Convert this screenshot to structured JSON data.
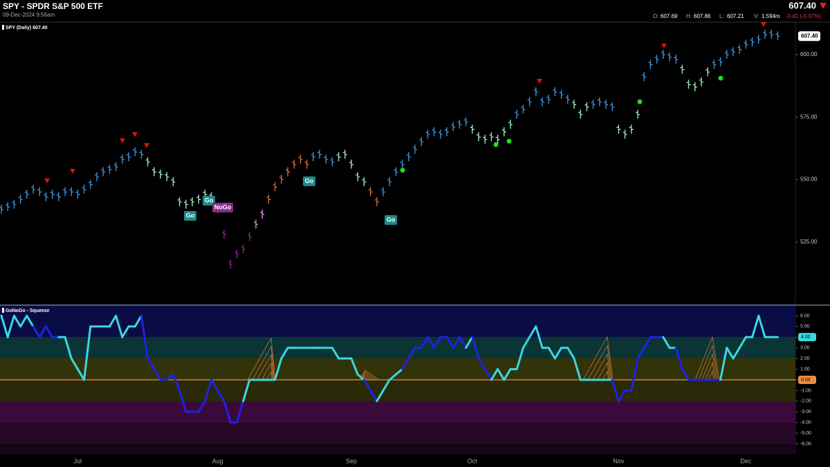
{
  "header": {
    "title": "SPY - SPDR S&P 500 ETF",
    "timestamp": "09-Dec-2024 9:56am",
    "last": "607.40",
    "ohlc": [
      {
        "label": "O:",
        "value": "607.69"
      },
      {
        "label": "H:",
        "value": "607.86"
      },
      {
        "label": "L:",
        "value": "607.21"
      },
      {
        "label": "V:",
        "value": "1.594m"
      }
    ],
    "change": "-0.41 (-0.07%)"
  },
  "chart_data": [
    {
      "type": "ohlc",
      "legend": "SPY (Daily) 607.40",
      "values": [
        538,
        539,
        540,
        542,
        544,
        546,
        545,
        543,
        544,
        543,
        545,
        545,
        544,
        546,
        548,
        551,
        553,
        554,
        555,
        558,
        559,
        561,
        560,
        557,
        553,
        552,
        551,
        549,
        541,
        540,
        541,
        542,
        544,
        543,
        538,
        528,
        516,
        520,
        522,
        527,
        532,
        536,
        542,
        547,
        550,
        553,
        556,
        558,
        556,
        559,
        560,
        558,
        557,
        559,
        560,
        556,
        551,
        549,
        545,
        541,
        545,
        549,
        553,
        556,
        559,
        562,
        565,
        568,
        569,
        568,
        569,
        571,
        572,
        573,
        570,
        567,
        566,
        567,
        566,
        569,
        572,
        576,
        578,
        581,
        585,
        581,
        582,
        585,
        584,
        582,
        580,
        576,
        579,
        580,
        581,
        580,
        579,
        570,
        568,
        570,
        576,
        591,
        596,
        598,
        600,
        599,
        598,
        594,
        588,
        587,
        589,
        593,
        596,
        597,
        600,
        601,
        602,
        604,
        605,
        606,
        608,
        608,
        607.4
      ],
      "colors": [
        "#3b8fd9",
        "#3b8fd9",
        "#3b8fd9",
        "#3b8fd9",
        "#3b8fd9",
        "#3b8fd9",
        "#3b8fd9",
        "#3b8fd9",
        "#3b8fd9",
        "#3b8fd9",
        "#3b8fd9",
        "#3b8fd9",
        "#3b8fd9",
        "#3b8fd9",
        "#3b8fd9",
        "#3b8fd9",
        "#3b8fd9",
        "#3b8fd9",
        "#3b8fd9",
        "#3b8fd9",
        "#3b8fd9",
        "#3b8fd9",
        "#3b8fd9",
        "#9de6bb",
        "#9de6bb",
        "#9de6bb",
        "#9de6bb",
        "#9de6bb",
        "#9de6bb",
        "#9de6bb",
        "#9de6bb",
        "#9de6bb",
        "#9de6bb",
        "#9de6bb",
        "#8a2386",
        "#8a2386",
        "#8a2386",
        "#8a2386",
        "#8a2386",
        "#8a2386",
        "#e089e0",
        "#e089e0",
        "#d9692e",
        "#d9692e",
        "#d9692e",
        "#d9692e",
        "#d9692e",
        "#d9692e",
        "#d9692e",
        "#3b8fd9",
        "#3b8fd9",
        "#3b8fd9",
        "#3b8fd9",
        "#9de6bb",
        "#9de6bb",
        "#9de6bb",
        "#9de6bb",
        "#9de6bb",
        "#d9692e",
        "#d9692e",
        "#3b8fd9",
        "#3b8fd9",
        "#3b8fd9",
        "#3b8fd9",
        "#3b8fd9",
        "#3b8fd9",
        "#3b8fd9",
        "#3b8fd9",
        "#3b8fd9",
        "#3b8fd9",
        "#3b8fd9",
        "#3b8fd9",
        "#3b8fd9",
        "#3b8fd9",
        "#9de6bb",
        "#9de6bb",
        "#9de6bb",
        "#9de6bb",
        "#9de6bb",
        "#9de6bb",
        "#9de6bb",
        "#3b8fd9",
        "#3b8fd9",
        "#3b8fd9",
        "#3b8fd9",
        "#3b8fd9",
        "#3b8fd9",
        "#3b8fd9",
        "#3b8fd9",
        "#3b8fd9",
        "#9de6bb",
        "#9de6bb",
        "#9de6bb",
        "#3b8fd9",
        "#3b8fd9",
        "#3b8fd9",
        "#3b8fd9",
        "#9de6bb",
        "#9de6bb",
        "#9de6bb",
        "#9de6bb",
        "#3b8fd9",
        "#3b8fd9",
        "#3b8fd9",
        "#3b8fd9",
        "#3b8fd9",
        "#3b8fd9",
        "#9de6bb",
        "#9de6bb",
        "#9de6bb",
        "#9de6bb",
        "#9de6bb",
        "#3b8fd9",
        "#3b8fd9",
        "#3b8fd9",
        "#3b8fd9",
        "#3b8fd9",
        "#3b8fd9",
        "#3b8fd9",
        "#3b8fd9",
        "#3b8fd9",
        "#3b8fd9",
        "#3b8fd9"
      ],
      "ylim": [
        500,
        613
      ],
      "yticks": [
        {
          "value": 600,
          "label": "600.00"
        },
        {
          "value": 575,
          "label": "575.00"
        },
        {
          "value": 550,
          "label": "550.00"
        },
        {
          "value": 525,
          "label": "525.00"
        }
      ],
      "last_tag": {
        "value": 607.4,
        "label": "607.40"
      },
      "annotations": [
        "Go",
        "Go",
        "NoGo",
        "Go",
        "Go"
      ]
    },
    {
      "type": "line",
      "title": "GoNoGo - Squeeze",
      "categories": [
        null,
        null,
        null,
        null,
        null,
        null,
        null,
        null,
        null,
        null,
        null,
        null,
        "Jul",
        null,
        null,
        null,
        null,
        null,
        null,
        null,
        null,
        null,
        null,
        null,
        null,
        null,
        null,
        null,
        null,
        null,
        null,
        null,
        null,
        null,
        "Aug",
        null,
        null,
        null,
        null,
        null,
        null,
        null,
        null,
        null,
        null,
        null,
        null,
        null,
        null,
        null,
        null,
        null,
        null,
        null,
        null,
        "Sep",
        null,
        null,
        null,
        null,
        null,
        null,
        null,
        null,
        null,
        null,
        null,
        null,
        null,
        null,
        null,
        null,
        null,
        null,
        "Oct",
        null,
        null,
        null,
        null,
        null,
        null,
        null,
        null,
        null,
        null,
        null,
        null,
        null,
        null,
        null,
        null,
        null,
        null,
        null,
        null,
        null,
        null,
        "Nov",
        null,
        null,
        null,
        null,
        null,
        null,
        null,
        null,
        null,
        null,
        null,
        null,
        null,
        null,
        null,
        null,
        null,
        null,
        null,
        "Dec",
        null,
        null,
        null,
        null,
        null
      ],
      "values": [
        6,
        4,
        6,
        5,
        6,
        5,
        4,
        5,
        4,
        4,
        4,
        2,
        1,
        0,
        5,
        5,
        5,
        5,
        6,
        4,
        5,
        5,
        6,
        2,
        1,
        0,
        0,
        0.5,
        -1,
        -3,
        -3,
        -3,
        -2,
        0,
        -1,
        -2,
        -4,
        -4,
        -2,
        0,
        0,
        0,
        0,
        0,
        2,
        3,
        3,
        3,
        3,
        3,
        3,
        3,
        3,
        2,
        2,
        2,
        0.5,
        0,
        -1,
        -2,
        -1,
        0,
        0.5,
        1,
        2,
        3,
        3,
        4,
        3,
        4,
        4,
        3,
        4,
        3,
        4,
        2,
        1,
        0,
        1,
        0,
        1,
        1,
        3,
        4,
        5,
        3,
        3,
        2,
        3,
        3,
        2,
        0,
        0,
        0,
        0,
        0,
        0,
        -2,
        -1,
        -1,
        2,
        3,
        4,
        4,
        4,
        3,
        3,
        1,
        0,
        0,
        0,
        0,
        0,
        0,
        3,
        2,
        3,
        4,
        4,
        6,
        4,
        4,
        4
      ],
      "colors": [
        "#3ad8e4",
        "#3ad8e4",
        "#3ad8e4",
        "#3ad8e4",
        "#3ad8e4",
        "#3ad8e4",
        "#1e22e8",
        "#1e22e8",
        "#1e22e8",
        "#1e22e8",
        "#3ad8e4",
        "#3ad8e4",
        "#3ad8e4",
        "#3ad8e4",
        "#3ad8e4",
        "#3ad8e4",
        "#3ad8e4",
        "#3ad8e4",
        "#3ad8e4",
        "#3ad8e4",
        "#3ad8e4",
        "#3ad8e4",
        "#3ad8e4",
        "#1e22e8",
        "#1e22e8",
        "#1e22e8",
        "#1e22e8",
        "#1e22e8",
        "#1e22e8",
        "#1e22e8",
        "#1e22e8",
        "#1e22e8",
        "#1e22e8",
        "#1e22e8",
        "#1e22e8",
        "#1e22e8",
        "#1e22e8",
        "#1e22e8",
        "#1e22e8",
        "#3ad8e4",
        "#3ad8e4",
        "#3ad8e4",
        "#3ad8e4",
        "#3ad8e4",
        "#3ad8e4",
        "#3ad8e4",
        "#3ad8e4",
        "#3ad8e4",
        "#3ad8e4",
        "#3ad8e4",
        "#3ad8e4",
        "#3ad8e4",
        "#3ad8e4",
        "#3ad8e4",
        "#3ad8e4",
        "#3ad8e4",
        "#3ad8e4",
        "#3ad8e4",
        "#1e22e8",
        "#1e22e8",
        "#3ad8e4",
        "#3ad8e4",
        "#3ad8e4",
        "#3ad8e4",
        "#1e22e8",
        "#1e22e8",
        "#1e22e8",
        "#1e22e8",
        "#1e22e8",
        "#1e22e8",
        "#1e22e8",
        "#1e22e8",
        "#1e22e8",
        "#1e22e8",
        "#3ad8e4",
        "#1e22e8",
        "#1e22e8",
        "#1e22e8",
        "#3ad8e4",
        "#3ad8e4",
        "#3ad8e4",
        "#3ad8e4",
        "#3ad8e4",
        "#3ad8e4",
        "#3ad8e4",
        "#3ad8e4",
        "#3ad8e4",
        "#3ad8e4",
        "#3ad8e4",
        "#3ad8e4",
        "#3ad8e4",
        "#3ad8e4",
        "#3ad8e4",
        "#3ad8e4",
        "#3ad8e4",
        "#3ad8e4",
        "#3ad8e4",
        "#1e22e8",
        "#1e22e8",
        "#1e22e8",
        "#1e22e8",
        "#1e22e8",
        "#1e22e8",
        "#1e22e8",
        "#1e22e8",
        "#3ad8e4",
        "#3ad8e4",
        "#1e22e8",
        "#1e22e8",
        "#1e22e8",
        "#1e22e8",
        "#1e22e8",
        "#1e22e8",
        "#1e22e8",
        "#3ad8e4",
        "#3ad8e4",
        "#3ad8e4",
        "#3ad8e4",
        "#3ad8e4",
        "#3ad8e4",
        "#3ad8e4",
        "#3ad8e4",
        "#3ad8e4"
      ],
      "ylim": [
        -7,
        7
      ],
      "yticks": [
        {
          "value": 6,
          "label": "6.00"
        },
        {
          "value": 5,
          "label": "5.00"
        },
        {
          "value": 4,
          "label": "4.00"
        },
        {
          "value": 3,
          "label": "3.00"
        },
        {
          "value": 2,
          "label": "2.00"
        },
        {
          "value": 1,
          "label": "1.00"
        },
        {
          "value": 0,
          "label": "0.00"
        },
        {
          "value": -1,
          "label": "-1.00"
        },
        {
          "value": -2,
          "label": "-2.00"
        },
        {
          "value": -3,
          "label": "-3.00"
        },
        {
          "value": -4,
          "label": "-4.00"
        },
        {
          "value": -5,
          "label": "-5.00"
        },
        {
          "value": -6,
          "label": "-6.00"
        }
      ],
      "tags": [
        {
          "value": 4,
          "label": "4.00",
          "color": "#3ad8e4"
        },
        {
          "value": 0,
          "label": "0.00",
          "color": "#f08a3a"
        }
      ]
    }
  ]
}
